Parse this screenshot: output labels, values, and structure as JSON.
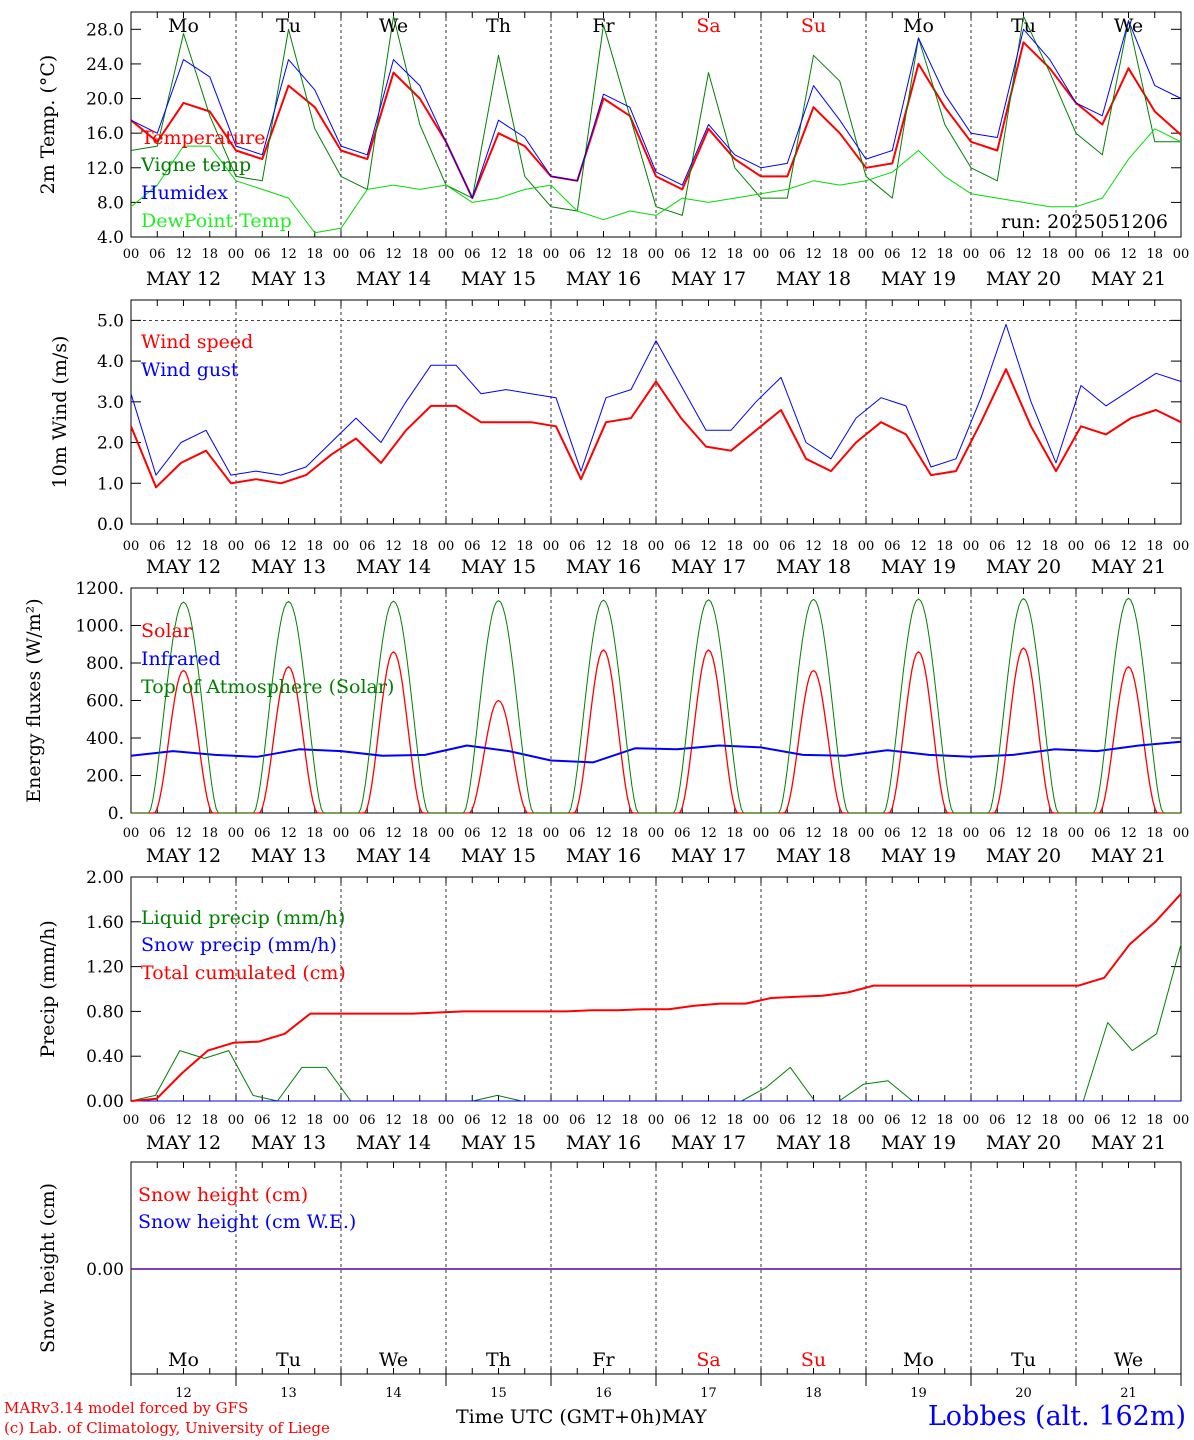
{
  "days": [
    "12",
    "13",
    "14",
    "15",
    "16",
    "17",
    "18",
    "19",
    "20",
    "21"
  ],
  "day_labels": [
    "MAY 12",
    "MAY 13",
    "MAY 14",
    "MAY 15",
    "MAY 16",
    "MAY 17",
    "MAY 18",
    "MAY 19",
    "MAY 20",
    "MAY 21"
  ],
  "weekdays": [
    "Mo",
    "Tu",
    "We",
    "Th",
    "Fr",
    "Sa",
    "Su",
    "Mo",
    "Tu",
    "We"
  ],
  "weekend_color": "#ff0000",
  "hour_ticks": [
    "00",
    "06",
    "12",
    "18"
  ],
  "run_label": "run: 2025051206",
  "footer": {
    "model": "MARv3.14 model forced by GFS",
    "lab": "(c) Lab. of Climatology, University of Liege",
    "axis_title": "Time UTC (GMT+0h)",
    "month": "MAY",
    "station": "Lobbes (alt. 162m)"
  },
  "colors": {
    "red": "#ff0000",
    "green": "#008000",
    "blue": "#0000ff",
    "lightgreen": "#00dd00"
  },
  "chart_data": [
    {
      "id": "temp",
      "type": "line",
      "ylabel": "2m Temp. (°C)",
      "ylim": [
        4,
        30
      ],
      "yticks": [
        "4.0",
        "8.0",
        "12.0",
        "16.0",
        "20.0",
        "24.0",
        "28.0"
      ],
      "x": "hours since MAY 12 00 UTC, every 6 h",
      "series": [
        {
          "name": "Temperature",
          "color": "#ff0000",
          "width": 2,
          "values": [
            17.5,
            15,
            19.5,
            18.5,
            14,
            13,
            21.5,
            19,
            14,
            13,
            23,
            20,
            15,
            8.5,
            16,
            14.5,
            11,
            10.5,
            20,
            18,
            11,
            9.5,
            16.5,
            13,
            11,
            11,
            19,
            16,
            12,
            12.5,
            24,
            19,
            15,
            14,
            26.5,
            23.5,
            19.5,
            17,
            23.5,
            18.5,
            15.8
          ]
        },
        {
          "name": "Vigne temp",
          "color": "#008000",
          "width": 1,
          "values": [
            14,
            14.5,
            27.5,
            18,
            11,
            10.5,
            28,
            16.5,
            11,
            9.5,
            29.5,
            17,
            10,
            8.5,
            25,
            11,
            7.5,
            7,
            28.5,
            18,
            7.5,
            6.5,
            23,
            12,
            8.5,
            8.5,
            25,
            22,
            11,
            8.5,
            27,
            17,
            12,
            10.5,
            29.5,
            23,
            16,
            13.5,
            29,
            15,
            15
          ]
        },
        {
          "name": "Humidex",
          "color": "#0000ff",
          "width": 1,
          "values": [
            17.5,
            16,
            24.5,
            22.5,
            14.5,
            13.5,
            24.5,
            21,
            14.5,
            13.5,
            24.5,
            21.5,
            15,
            8.5,
            17.5,
            15.5,
            11,
            10.5,
            20.5,
            19,
            11.5,
            10,
            17,
            13.5,
            12,
            12.5,
            21.5,
            17.5,
            13,
            14,
            27,
            20.5,
            16,
            15.5,
            28,
            24.5,
            19.5,
            18,
            29,
            21.5,
            20
          ]
        },
        {
          "name": "DewPoint Temp",
          "color": "#00dd00",
          "width": 1,
          "values": [
            7.5,
            10,
            14.5,
            14.5,
            10.5,
            9.5,
            8.5,
            4.5,
            5,
            9.5,
            10,
            9.5,
            10,
            8,
            8.5,
            9.5,
            10,
            7,
            6,
            7,
            6.5,
            8.5,
            8,
            8.5,
            9,
            9.5,
            10.5,
            10,
            10.5,
            11.5,
            14,
            11,
            9,
            8.5,
            8,
            7.5,
            7.5,
            8.5,
            13,
            16.5,
            15
          ]
        }
      ]
    },
    {
      "id": "wind",
      "type": "line",
      "ylabel": "10m Wind (m/s)",
      "ylim": [
        0,
        5.5
      ],
      "yticks": [
        "0.0",
        "1.0",
        "2.0",
        "3.0",
        "4.0",
        "5.0"
      ],
      "dashed_y": 5.0,
      "series": [
        {
          "name": "Wind speed",
          "color": "#ff0000",
          "width": 2,
          "values": [
            2.4,
            0.9,
            1.5,
            1.8,
            1.0,
            1.1,
            1.0,
            1.2,
            1.7,
            2.1,
            1.5,
            2.3,
            2.9,
            2.9,
            2.5,
            2.5,
            2.5,
            2.4,
            1.1,
            2.5,
            2.6,
            3.5,
            2.6,
            1.9,
            1.8,
            2.3,
            2.8,
            1.6,
            1.3,
            2.0,
            2.5,
            2.2,
            1.2,
            1.3,
            2.5,
            3.8,
            2.4,
            1.3,
            2.4,
            2.2,
            2.6,
            2.8,
            2.5
          ]
        },
        {
          "name": "Wind gust",
          "color": "#0000ff",
          "width": 1,
          "values": [
            3.2,
            1.2,
            2.0,
            2.3,
            1.2,
            1.3,
            1.2,
            1.4,
            2.0,
            2.6,
            2.0,
            3.0,
            3.9,
            3.9,
            3.2,
            3.3,
            3.2,
            3.1,
            1.3,
            3.1,
            3.3,
            4.5,
            3.4,
            2.3,
            2.3,
            3.0,
            3.6,
            2.0,
            1.6,
            2.6,
            3.1,
            2.9,
            1.4,
            1.6,
            3.1,
            4.9,
            3.0,
            1.5,
            3.4,
            2.9,
            3.3,
            3.7,
            3.5
          ]
        }
      ]
    },
    {
      "id": "energy",
      "type": "line",
      "ylabel": "Energy fluxes (W/m²)",
      "ylim": [
        0,
        1200
      ],
      "yticks": [
        "0.",
        "200.",
        "400.",
        "600.",
        "800.",
        "1000.",
        "1200."
      ],
      "series": [
        {
          "name": "Solar",
          "color": "#ff0000",
          "width": 1.3,
          "peaks": [
            760,
            780,
            860,
            600,
            870,
            870,
            760,
            860,
            880,
            780
          ],
          "note_values": "daily solar peak (W/m2)"
        },
        {
          "name": "Infrared",
          "color": "#0000ff",
          "width": 2,
          "values": [
            305,
            330,
            310,
            300,
            340,
            330,
            305,
            310,
            360,
            330,
            280,
            270,
            345,
            340,
            360,
            350,
            310,
            305,
            335,
            310,
            300,
            310,
            340,
            330,
            360,
            380
          ]
        },
        {
          "name": "Top of Atmosphere (Solar)",
          "color": "#008000",
          "width": 1,
          "peaks": [
            1125,
            1128,
            1130,
            1133,
            1135,
            1137,
            1139,
            1141,
            1143,
            1145
          ]
        }
      ]
    },
    {
      "id": "precip",
      "type": "line",
      "ylabel": "Precip (mm/h)",
      "ylim": [
        0,
        2.0
      ],
      "yticks": [
        "0.00",
        "0.40",
        "0.80",
        "1.20",
        "1.60",
        "2.00"
      ],
      "series": [
        {
          "name": "Liquid precip (mm/h)",
          "color": "#008000",
          "width": 1,
          "values": [
            0,
            0.05,
            0.45,
            0.38,
            0.45,
            0.05,
            0,
            0.3,
            0.3,
            0,
            0,
            0,
            0,
            0,
            0,
            0.05,
            0,
            0,
            0,
            0,
            0,
            0,
            0,
            0,
            0,
            0,
            0.12,
            0.3,
            0,
            0,
            0.15,
            0.18,
            0,
            0,
            0,
            0,
            0,
            0,
            0,
            0,
            0.7,
            0.45,
            0.6,
            1.4
          ]
        },
        {
          "name": "Snow precip (mm/h)",
          "color": "#0000ff",
          "width": 1,
          "values": [
            0,
            0
          ]
        },
        {
          "name": "Total cumulated (cm)",
          "color": "#ff0000",
          "width": 2,
          "values": [
            0,
            0.02,
            0.25,
            0.45,
            0.52,
            0.53,
            0.6,
            0.78,
            0.78,
            0.78,
            0.78,
            0.78,
            0.79,
            0.8,
            0.8,
            0.8,
            0.8,
            0.8,
            0.81,
            0.81,
            0.82,
            0.82,
            0.85,
            0.87,
            0.87,
            0.92,
            0.93,
            0.94,
            0.97,
            1.03,
            1.03,
            1.03,
            1.03,
            1.03,
            1.03,
            1.03,
            1.03,
            1.03,
            1.1,
            1.4,
            1.6,
            1.85
          ]
        }
      ]
    },
    {
      "id": "snow",
      "type": "line",
      "ylabel": "Snow height (cm)",
      "yticks": [
        "0.00"
      ],
      "series": [
        {
          "name": "Snow height (cm)",
          "color": "#ff0000",
          "width": 1.5,
          "values": [
            0,
            0
          ]
        },
        {
          "name": "Snow height (cm W.E.)",
          "color": "#0000ff",
          "width": 1,
          "values": [
            0,
            0
          ]
        }
      ]
    }
  ]
}
